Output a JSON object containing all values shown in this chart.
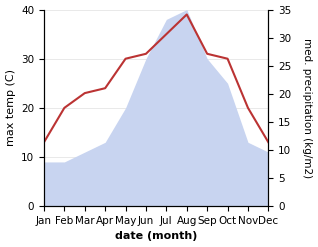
{
  "months": [
    "Jan",
    "Feb",
    "Mar",
    "Apr",
    "May",
    "Jun",
    "Jul",
    "Aug",
    "Sep",
    "Oct",
    "Nov",
    "Dec"
  ],
  "temperature": [
    13,
    20,
    23,
    24,
    30,
    31,
    35,
    39,
    31,
    30,
    20,
    13
  ],
  "precipitation_left_scale": [
    9,
    9,
    11,
    13,
    20,
    30,
    38,
    40,
    30,
    25,
    13,
    11
  ],
  "temp_color": "#bb3333",
  "precip_fill_color": "#c8d4f0",
  "precip_edge_color": "#c8d4f0",
  "temp_ylim": [
    0,
    40
  ],
  "precip_ylim": [
    0,
    35
  ],
  "temp_yticks": [
    0,
    10,
    20,
    30,
    40
  ],
  "precip_yticks": [
    0,
    5,
    10,
    15,
    20,
    25,
    30,
    35
  ],
  "xlabel": "date (month)",
  "ylabel_left": "max temp (C)",
  "ylabel_right": "med. precipitation (kg/m2)",
  "background_color": "#ffffff",
  "label_fontsize": 8,
  "tick_fontsize": 7.5
}
